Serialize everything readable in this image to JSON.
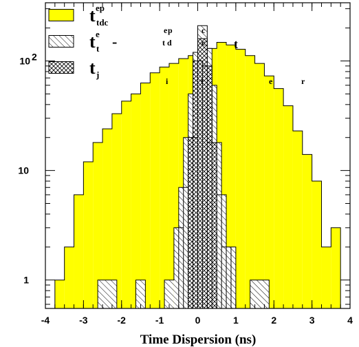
{
  "chart_data": {
    "type": "bar",
    "xlabel": "Time Dispersion (ns)",
    "ylabel": "",
    "xlim": [
      -4,
      4
    ],
    "ylim": [
      0.55,
      340
    ],
    "yscale": "log",
    "grid": false,
    "legend_position": "top-left",
    "x_ticks": [
      "-4",
      "-3",
      "-2",
      "-1",
      "0",
      "1",
      "2",
      "3",
      "4"
    ],
    "y_ticks": [
      {
        "value": 1,
        "label": "1"
      },
      {
        "value": 10,
        "label": "10"
      },
      {
        "value": 100,
        "label": "10",
        "sup": "2"
      }
    ],
    "bin_width": 0.25,
    "series": [
      {
        "name": "t_tdc^ep",
        "style": "solid-yellow",
        "bins": [
          [
            -3.75,
            1
          ],
          [
            -3.5,
            2
          ],
          [
            -3.25,
            6
          ],
          [
            -3.0,
            12
          ],
          [
            -2.75,
            18
          ],
          [
            -2.5,
            24
          ],
          [
            -2.25,
            33
          ],
          [
            -2.0,
            43
          ],
          [
            -1.75,
            50
          ],
          [
            -1.5,
            63
          ],
          [
            -1.25,
            78
          ],
          [
            -1.0,
            88
          ],
          [
            -0.75,
            95
          ],
          [
            -0.5,
            105
          ],
          [
            -0.25,
            112
          ],
          [
            0.0,
            120
          ],
          [
            0.25,
            130
          ],
          [
            0.5,
            148
          ],
          [
            0.75,
            140
          ],
          [
            1.0,
            128
          ],
          [
            1.25,
            112
          ],
          [
            1.5,
            95
          ],
          [
            1.75,
            73
          ],
          [
            2.0,
            56
          ],
          [
            2.25,
            39
          ],
          [
            2.5,
            23
          ],
          [
            2.75,
            14
          ],
          [
            3.0,
            8
          ],
          [
            3.25,
            2
          ],
          [
            3.5,
            3
          ]
        ]
      },
      {
        "name": "t_t^e - t_tdc^ep",
        "style": "single-hatch",
        "bins": [
          [
            -2.625,
            1
          ],
          [
            -2.375,
            1
          ],
          [
            -1.625,
            1
          ],
          [
            -0.875,
            1
          ],
          [
            -0.625,
            3
          ],
          [
            -0.5,
            7
          ],
          [
            -0.375,
            20
          ],
          [
            -0.25,
            50
          ],
          [
            -0.125,
            120
          ],
          [
            0.0,
            210
          ],
          [
            0.125,
            130
          ],
          [
            0.25,
            60
          ],
          [
            0.375,
            18
          ],
          [
            0.5,
            6
          ],
          [
            0.625,
            2
          ],
          [
            0.75,
            2
          ],
          [
            1.375,
            1
          ],
          [
            1.625,
            1
          ]
        ]
      },
      {
        "name": "t_j",
        "style": "cross-hatch",
        "bins": [
          [
            -0.25,
            20
          ],
          [
            -0.125,
            100
          ],
          [
            0.0,
            160
          ],
          [
            0.125,
            90
          ],
          [
            0.25,
            18
          ]
        ]
      }
    ],
    "legend": [
      {
        "swatch": "solid-yellow",
        "main": "t",
        "sup": "ep",
        "sub": "tdc",
        "scattered": []
      },
      {
        "swatch": "single-hatch",
        "main": "t",
        "sup": "e",
        "sub": "t",
        "op": "-",
        "scattered": [
          {
            "t": "e",
            "dx": 108,
            "dy": -16,
            "s": 12
          },
          {
            "t": "p",
            "dx": 114,
            "dy": -16,
            "s": 12
          },
          {
            "t": "c",
            "dx": 163,
            "dy": -16,
            "s": 12
          },
          {
            "t": "t",
            "dx": 106,
            "dy": 2,
            "s": 12
          },
          {
            "t": "d",
            "dx": 113,
            "dy": 2,
            "s": 12
          },
          {
            "t": "c",
            "dx": 163,
            "dy": 2,
            "s": 12
          },
          {
            "t": "t",
            "dx": 210,
            "dy": 2,
            "s": 18
          }
        ]
      },
      {
        "swatch": "cross-hatch",
        "main": "t",
        "sub": "j",
        "scattered": [
          {
            "t": "i",
            "dx": 111,
            "dy": 20,
            "s": 12
          },
          {
            "t": "t",
            "dx": 162,
            "dy": 20,
            "s": 12
          },
          {
            "t": "e",
            "dx": 261,
            "dy": 20,
            "s": 12
          },
          {
            "t": "r",
            "dx": 308,
            "dy": 20,
            "s": 12
          }
        ]
      }
    ]
  }
}
